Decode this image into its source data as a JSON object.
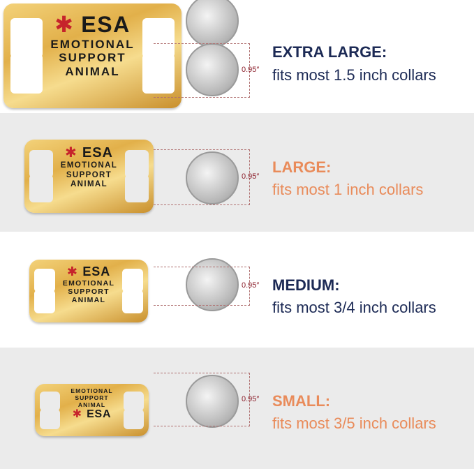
{
  "colors": {
    "navy": "#1c2a55",
    "orange": "#e98b5a",
    "gold": "#e2b04a",
    "gray_band": "#ebebeb"
  },
  "tag_text": {
    "esa": "ESA",
    "line1": "EMOTIONAL",
    "line2": "SUPPORT",
    "line3": "ANIMAL",
    "icon": "star-of-life-icon"
  },
  "coin_diameter": "0.95″",
  "sizes": [
    {
      "heading": "EXTRA LARGE:",
      "subtitle": "fits most 1.5 inch collars",
      "color": "navy"
    },
    {
      "heading": "LARGE:",
      "subtitle": "fits most 1 inch collars",
      "color": "orange"
    },
    {
      "heading": "MEDIUM:",
      "subtitle": "fits most 3/4 inch collars",
      "color": "navy"
    },
    {
      "heading": "SMALL:",
      "subtitle": "fits most 3/5 inch collars",
      "color": "orange"
    }
  ]
}
